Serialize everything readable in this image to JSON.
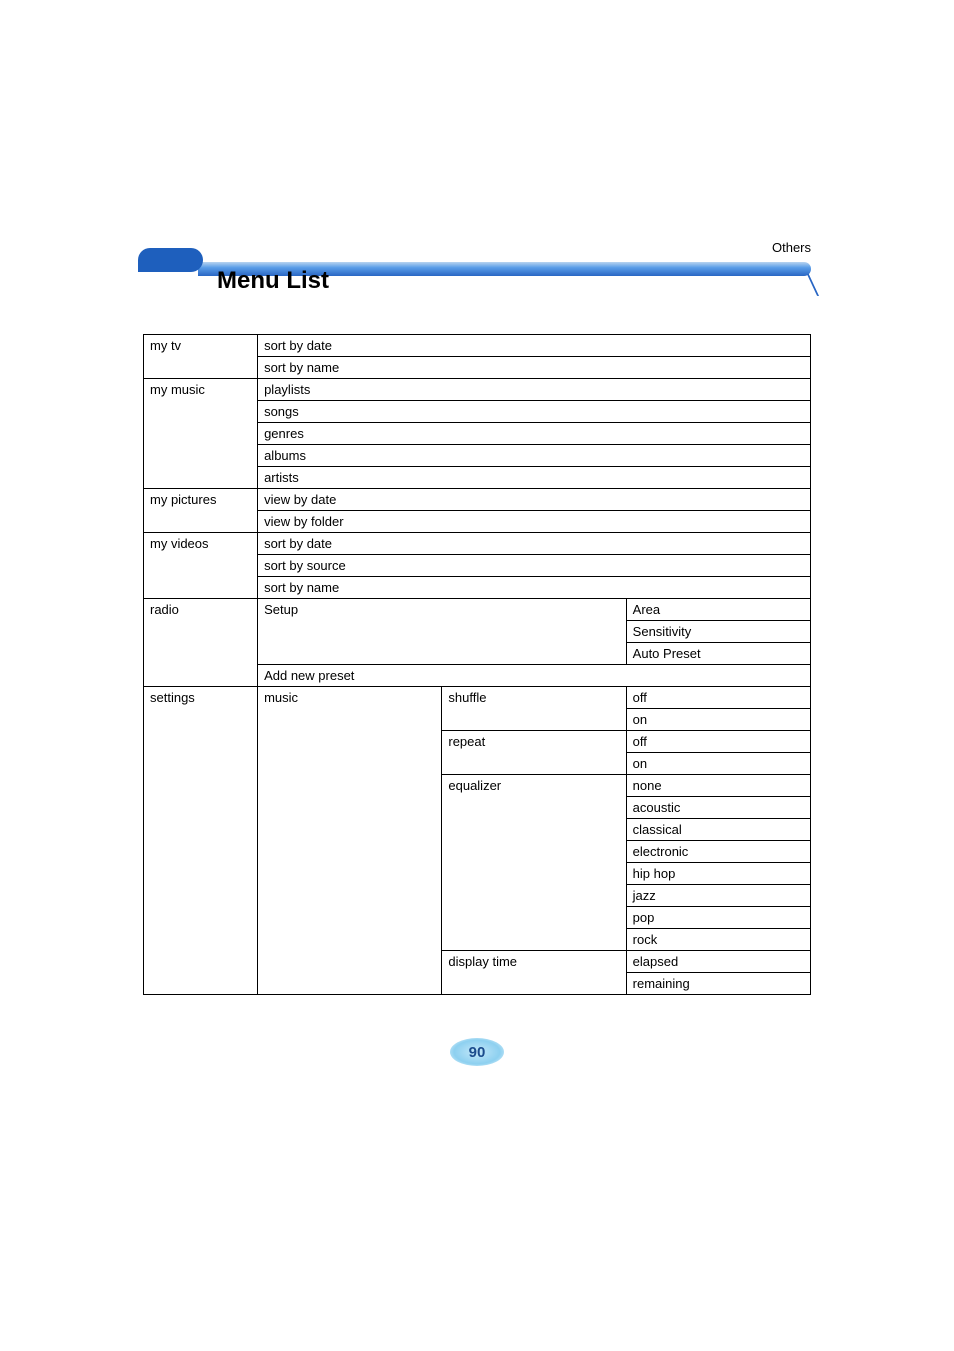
{
  "section_label": "Others",
  "page_title": "Menu List",
  "page_number": "90",
  "table": {
    "rows": [
      {
        "col1": "my tv",
        "col1_rowspan": 2,
        "col2": "sort by date",
        "col2_colspan": 3
      },
      {
        "col2": "sort by name",
        "col2_colspan": 3
      },
      {
        "col1": "my music",
        "col1_rowspan": 5,
        "col2": "playlists",
        "col2_colspan": 3
      },
      {
        "col2": "songs",
        "col2_colspan": 3
      },
      {
        "col2": "genres",
        "col2_colspan": 3
      },
      {
        "col2": "albums",
        "col2_colspan": 3
      },
      {
        "col2": "artists",
        "col2_colspan": 3
      },
      {
        "col1": "my pictures",
        "col1_rowspan": 2,
        "col2": "view by date",
        "col2_colspan": 3
      },
      {
        "col2": "view by folder",
        "col2_colspan": 3
      },
      {
        "col1": "my videos",
        "col1_rowspan": 3,
        "col2": "sort by date",
        "col2_colspan": 3
      },
      {
        "col2": "sort by source",
        "col2_colspan": 3
      },
      {
        "col2": "sort by name",
        "col2_colspan": 3
      },
      {
        "col1": "radio",
        "col1_rowspan": 4,
        "col2": "Setup",
        "col2_rowspan": 3,
        "col2_colspan": 2,
        "col4": "Area"
      },
      {
        "col4": "Sensitivity"
      },
      {
        "col4": "Auto Preset"
      },
      {
        "col2": "Add new preset",
        "col2_colspan": 3
      },
      {
        "col1": "settings",
        "col1_rowspan": 14,
        "col2": "music",
        "col2_rowspan": 14,
        "col3": "shuffle",
        "col3_rowspan": 2,
        "col4": "off"
      },
      {
        "col4": "on"
      },
      {
        "col3": "repeat",
        "col3_rowspan": 2,
        "col4": "off"
      },
      {
        "col4": "on"
      },
      {
        "col3": "equalizer",
        "col3_rowspan": 8,
        "col4": "none"
      },
      {
        "col4": "acoustic"
      },
      {
        "col4": "classical"
      },
      {
        "col4": "electronic"
      },
      {
        "col4": "hip hop"
      },
      {
        "col4": "jazz"
      },
      {
        "col4": "pop"
      },
      {
        "col4": "rock"
      },
      {
        "col3": "display time",
        "col3_rowspan": 2,
        "col4": "elapsed"
      },
      {
        "col4": "remaining"
      }
    ]
  }
}
